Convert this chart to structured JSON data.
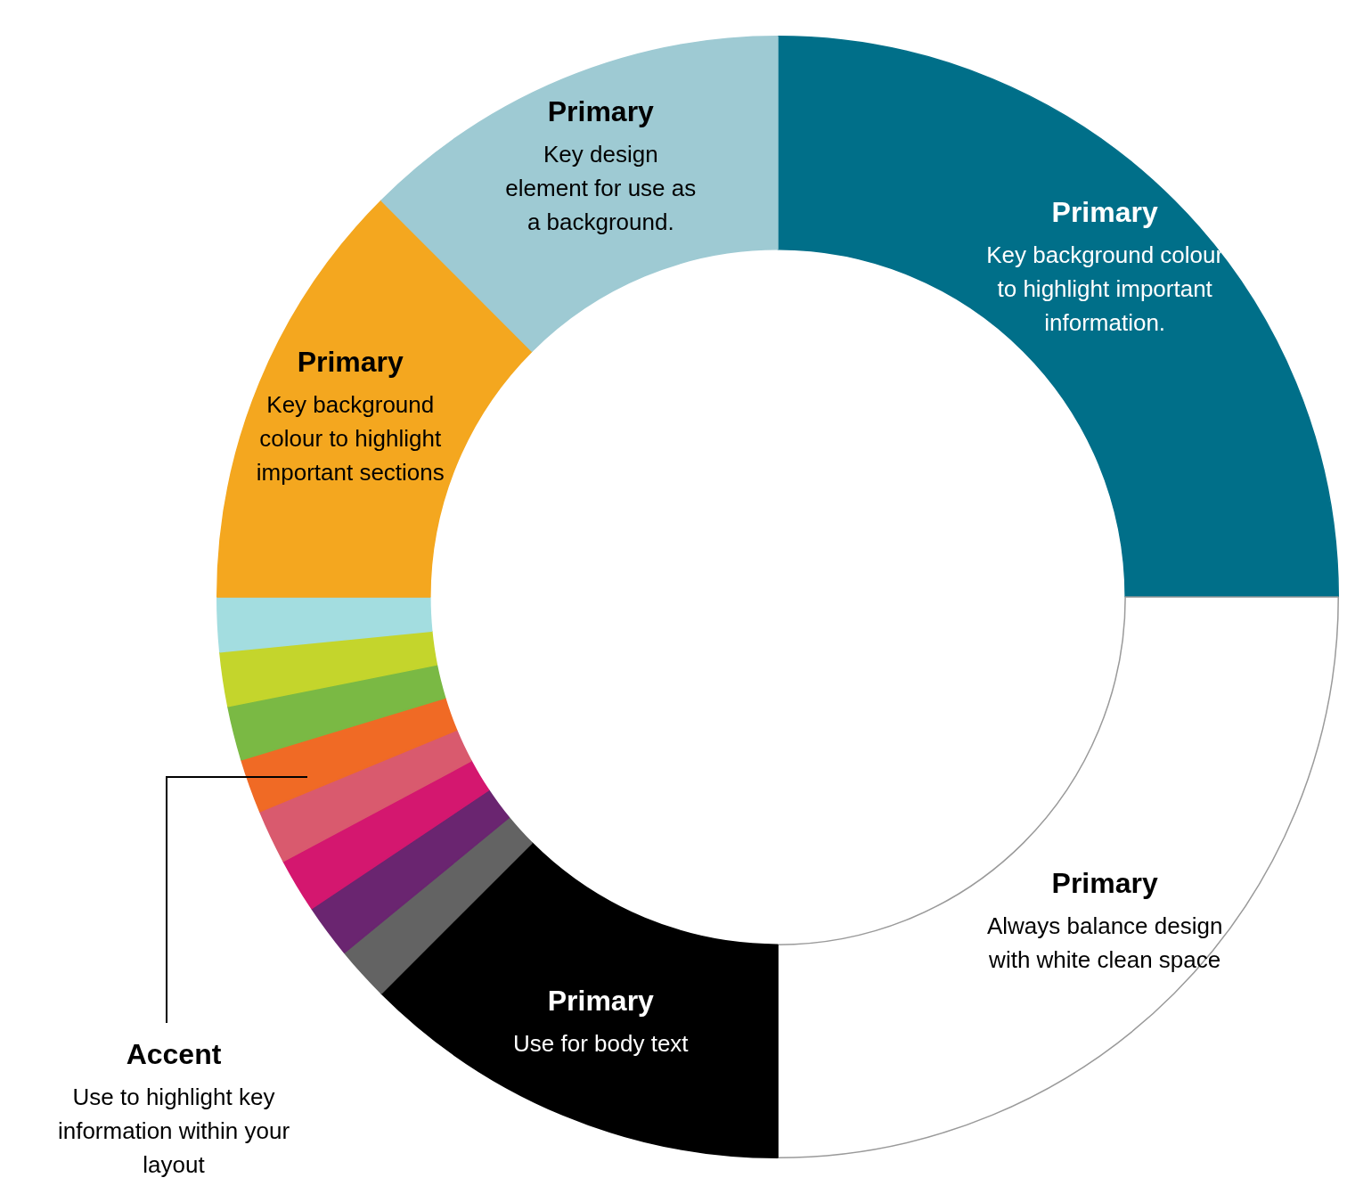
{
  "chart_data": {
    "type": "donut",
    "categories": [
      "Primary\nKey background colour\nto highlight important\ninformation.",
      "Primary\nAlways balance design\nwith white clean space",
      "Primary\nUse for body text",
      null,
      null,
      null,
      null,
      null,
      null,
      null,
      null,
      "Primary\nKey background\ncolour to highlight\nimportant sections",
      "Primary\nKey design\nelement for use as\na background."
    ],
    "values": [
      25,
      25,
      12.5,
      1.5625,
      1.5625,
      1.5625,
      1.5625,
      1.5625,
      1.5625,
      1.5625,
      1.5625,
      12.5,
      12.5
    ],
    "colors": [
      "#006f89",
      "#ffffff",
      "#000000",
      "#636363",
      "#6a2570",
      "#d4176f",
      "#d95a6e",
      "#f06a25",
      "#7ab944",
      "#c4d52c",
      "#a3dde0",
      "#f4a71f",
      "#9ecad3"
    ],
    "annotations": [
      "Accent\nUse to highlight key\ninformation within your\nlayout"
    ]
  }
}
